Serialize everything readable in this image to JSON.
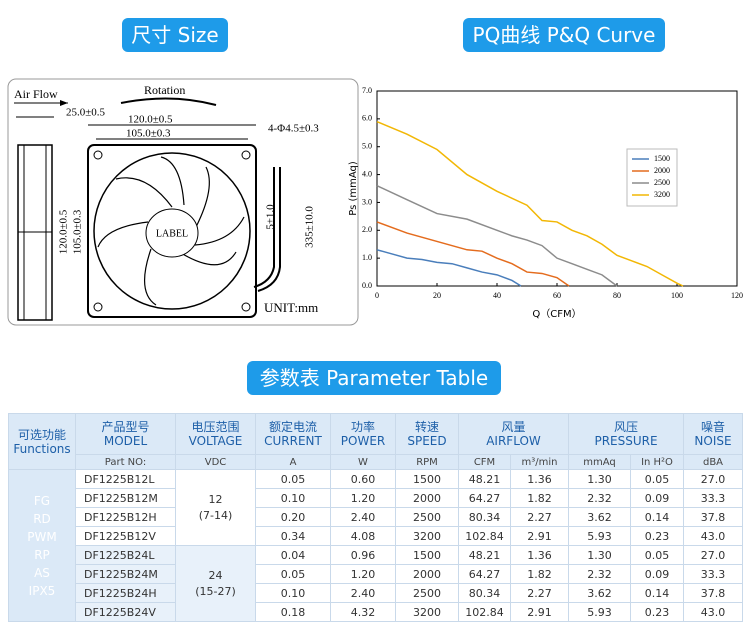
{
  "headings": {
    "size": "尺寸 Size",
    "pq": "PQ曲线 P&Q Curve",
    "table": "参数表 Parameter Table"
  },
  "drawing": {
    "air_flow": "Air Flow",
    "rotation": "Rotation",
    "depth": "25.0±0.5",
    "width": "120.0±0.5",
    "hole_span": "105.0±0.3",
    "holes": "4-Φ4.5±0.3",
    "height": "120.0±0.5",
    "hole_span_v": "105.0±0.3",
    "strip": "5±1.0",
    "lead": "335±10.0",
    "label": "LABEL",
    "unit": "UNIT:mm"
  },
  "chart_data": {
    "type": "line",
    "xlabel": "Q（CFM）",
    "ylabel": "Ps (mmAq)",
    "xlim": [
      0,
      120
    ],
    "xticks": [
      0,
      20,
      40,
      60,
      80,
      100,
      120
    ],
    "ylim": [
      0,
      7
    ],
    "yticks": [
      {
        "value": 0,
        "label": "0.0"
      },
      {
        "value": 1,
        "label": "1.0"
      },
      {
        "value": 2,
        "label": "2.0"
      },
      {
        "value": 3,
        "label": "3.0"
      },
      {
        "value": 4,
        "label": "4.0"
      },
      {
        "value": 5,
        "label": "5.0"
      },
      {
        "value": 6,
        "label": "6.0"
      },
      {
        "value": 7,
        "label": "7.0"
      }
    ],
    "legend": "upper right",
    "series": [
      {
        "name": "1500",
        "color": "#4a7ebb",
        "x": [
          0,
          5,
          10,
          15,
          20,
          25,
          30,
          35,
          40,
          45,
          48
        ],
        "values": [
          1.3,
          1.15,
          1.0,
          0.95,
          0.85,
          0.8,
          0.65,
          0.5,
          0.4,
          0.2,
          0.0
        ]
      },
      {
        "name": "2000",
        "color": "#e46c1e",
        "x": [
          0,
          10,
          20,
          30,
          35,
          40,
          45,
          50,
          55,
          60,
          64
        ],
        "values": [
          2.3,
          1.9,
          1.6,
          1.3,
          1.25,
          1.0,
          0.8,
          0.5,
          0.45,
          0.3,
          0.0
        ]
      },
      {
        "name": "2500",
        "color": "#8c8c8c",
        "x": [
          0,
          10,
          20,
          30,
          40,
          45,
          50,
          55,
          60,
          65,
          70,
          75,
          80
        ],
        "values": [
          3.6,
          3.1,
          2.6,
          2.4,
          2.0,
          1.8,
          1.65,
          1.45,
          1.0,
          0.8,
          0.6,
          0.4,
          0.0
        ]
      },
      {
        "name": "3200",
        "color": "#f2b705",
        "x": [
          0,
          10,
          20,
          30,
          40,
          50,
          55,
          60,
          65,
          70,
          75,
          80,
          85,
          90,
          95,
          100,
          102
        ],
        "values": [
          5.9,
          5.45,
          4.9,
          4.0,
          3.4,
          2.9,
          2.35,
          2.3,
          2.0,
          1.8,
          1.5,
          1.1,
          0.9,
          0.7,
          0.4,
          0.1,
          0.0
        ]
      }
    ]
  },
  "table": {
    "header": [
      [
        "可选功能",
        "Functions"
      ],
      [
        "产品型号",
        "MODEL"
      ],
      [
        "电压范围",
        "VOLTAGE"
      ],
      [
        "额定电流",
        "CURRENT"
      ],
      [
        "功率",
        "POWER"
      ],
      [
        "转速",
        "SPEED"
      ],
      [
        "风量",
        "AIRFLOW"
      ],
      [
        "风压",
        "PRESSURE"
      ],
      [
        "噪音",
        "NOISE"
      ]
    ],
    "units": [
      "Part NO:",
      "VDC",
      "A",
      "W",
      "RPM",
      "CFM",
      "m³/min",
      "mmAq",
      "In H²O",
      "dBA"
    ],
    "functions": [
      "FG",
      "RD",
      "PWM",
      "RP",
      "AS",
      "IPX5"
    ],
    "voltage_groups": [
      [
        "12",
        "(7-14)"
      ],
      [
        "24",
        "(15-27)"
      ]
    ],
    "rows": [
      [
        "DF1225B12L",
        "0.05",
        "0.60",
        "1500",
        "48.21",
        "1.36",
        "1.30",
        "0.05",
        "27.0"
      ],
      [
        "DF1225B12M",
        "0.10",
        "1.20",
        "2000",
        "64.27",
        "1.82",
        "2.32",
        "0.09",
        "33.3"
      ],
      [
        "DF1225B12H",
        "0.20",
        "2.40",
        "2500",
        "80.34",
        "2.27",
        "3.62",
        "0.14",
        "37.8"
      ],
      [
        "DF1225B12V",
        "0.34",
        "4.08",
        "3200",
        "102.84",
        "2.91",
        "5.93",
        "0.23",
        "43.0"
      ],
      [
        "DF1225B24L",
        "0.04",
        "0.96",
        "1500",
        "48.21",
        "1.36",
        "1.30",
        "0.05",
        "27.0"
      ],
      [
        "DF1225B24M",
        "0.05",
        "1.20",
        "2000",
        "64.27",
        "1.82",
        "2.32",
        "0.09",
        "33.3"
      ],
      [
        "DF1225B24H",
        "0.10",
        "2.40",
        "2500",
        "80.34",
        "2.27",
        "3.62",
        "0.14",
        "37.8"
      ],
      [
        "DF1225B24V",
        "0.18",
        "4.32",
        "3200",
        "102.84",
        "2.91",
        "5.93",
        "0.23",
        "43.0"
      ]
    ]
  }
}
